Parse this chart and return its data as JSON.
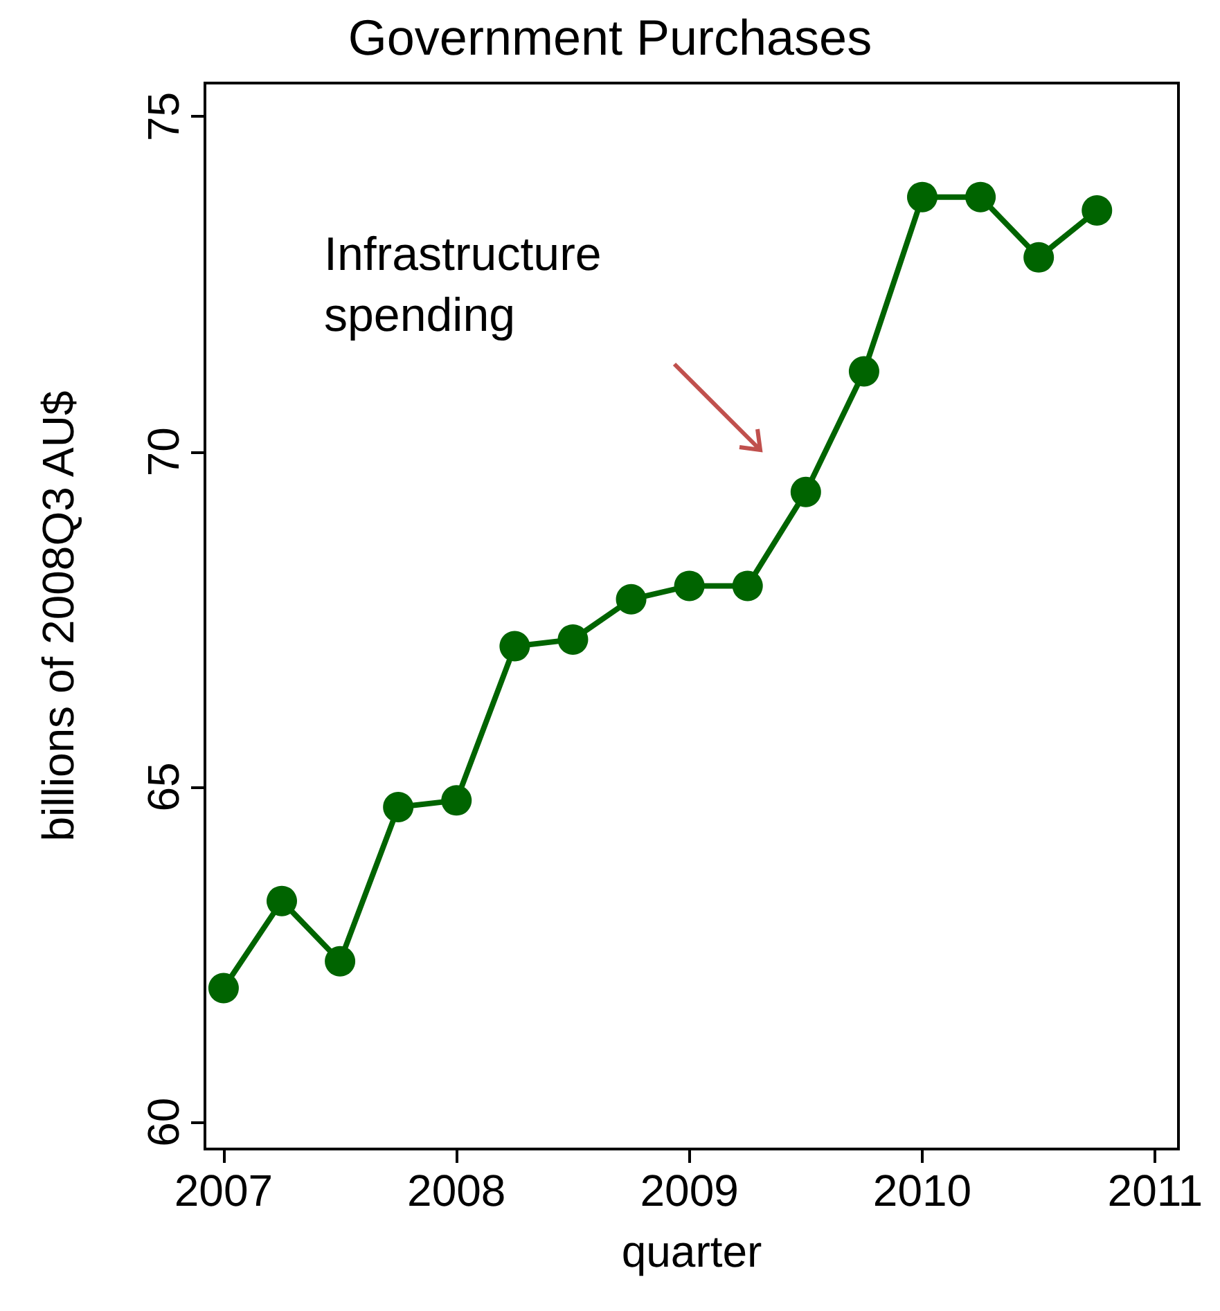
{
  "chart_data": {
    "type": "line",
    "title": "Government Purchases",
    "xlabel": "quarter",
    "ylabel": "billions of 2008Q3 AU$",
    "x": [
      2007,
      2007.25,
      2007.5,
      2007.75,
      2008,
      2008.25,
      2008.5,
      2008.75,
      2009,
      2009.25,
      2009.5,
      2009.75,
      2010,
      2010.25,
      2010.5,
      2010.75
    ],
    "series": [
      {
        "color": "#006400",
        "values": [
          62.0,
          63.3,
          62.4,
          64.7,
          64.8,
          67.1,
          67.2,
          67.8,
          68.0,
          68.0,
          69.4,
          71.2,
          73.8,
          73.8,
          72.9,
          73.6
        ]
      }
    ],
    "xlim": [
      2006.92,
      2011.1
    ],
    "xticks": [
      2007,
      2008,
      2009,
      2010,
      2011
    ],
    "ylim": [
      59.6,
      75.5
    ],
    "yticks": [
      60,
      65,
      70,
      75
    ],
    "annotations": [
      "Infrastructure spending"
    ],
    "grid": false,
    "marker": "circle",
    "line_style": "solid"
  }
}
